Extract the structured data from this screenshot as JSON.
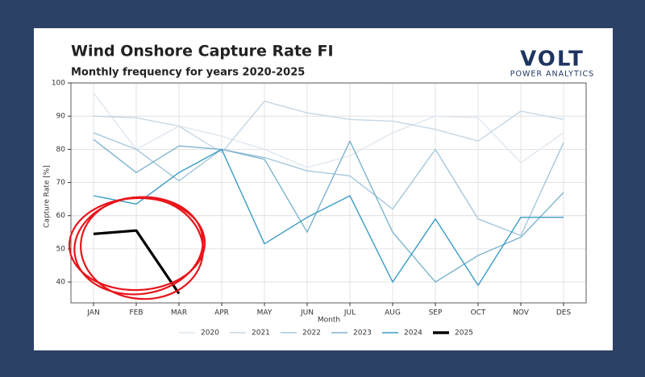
{
  "chart_data": {
    "type": "line",
    "title": "Wind Onshore Capture Rate FI",
    "subtitle": "Monthly frequency for years 2020-2025",
    "logo": {
      "name": "VOLT",
      "tagline": "POWER ANALYTICS"
    },
    "x_label": "Month",
    "y_label": "Capture Rate [%]",
    "categories": [
      "JAN",
      "FEB",
      "MAR",
      "APR",
      "MAY",
      "JUN",
      "JUL",
      "AUG",
      "SEP",
      "OCT",
      "NOV",
      "DES"
    ],
    "series": [
      {
        "name": "2020",
        "color": "#dfe7ef",
        "values": [
          97,
          80,
          87,
          84,
          80,
          74.5,
          78,
          85,
          90,
          89.5,
          76,
          85
        ]
      },
      {
        "name": "2021",
        "color": "#c5d7e6",
        "values": [
          90,
          89.5,
          87,
          79,
          94.5,
          91,
          89,
          88.5,
          86,
          82.5,
          91.5,
          89
        ]
      },
      {
        "name": "2022",
        "color": "#a5c8dc",
        "values": [
          85,
          80,
          70.5,
          80,
          77.5,
          73.5,
          72,
          62,
          80,
          59,
          54,
          82
        ]
      },
      {
        "name": "2023",
        "color": "#7db4cf",
        "values": [
          83,
          73,
          81,
          80,
          77,
          55,
          82.5,
          55,
          40,
          48,
          53.5,
          67
        ]
      },
      {
        "name": "2024",
        "color": "#3a9cc4",
        "values": [
          66,
          63.5,
          73,
          80,
          51.5,
          59.5,
          66,
          40,
          59,
          39,
          59.5,
          59.5
        ]
      },
      {
        "name": "2025",
        "color": "#000000",
        "values": [
          54.5,
          55.5,
          36.5,
          null,
          null,
          null,
          null,
          null,
          null,
          null,
          null,
          null
        ]
      }
    ],
    "ylim": [
      33.7,
      100
    ],
    "yticks": [
      40,
      50,
      60,
      70,
      80,
      90,
      100
    ],
    "grid": true,
    "legend": "bottom"
  }
}
